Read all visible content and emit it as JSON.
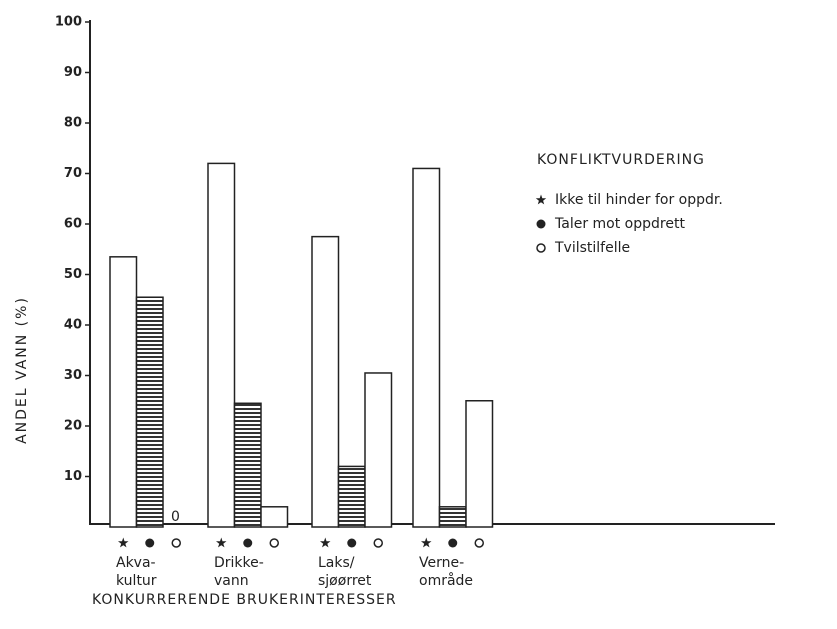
{
  "chart_data": {
    "type": "bar",
    "categories": [
      [
        "Akva-",
        "kultur"
      ],
      [
        "Drikke-",
        "vann"
      ],
      [
        "Laks/",
        "sjøørret"
      ],
      [
        "Verne-",
        "område"
      ]
    ],
    "series": [
      {
        "name": "Ikke til hinder for oppdr.",
        "color": "#ffffff",
        "marker": "star",
        "values": [
          53.5,
          72,
          57.5,
          71
        ]
      },
      {
        "name": "Taler mot oppdrett",
        "color": "#333333",
        "hatch": true,
        "marker": "dot",
        "values": [
          45.5,
          24.5,
          12,
          4
        ]
      },
      {
        "name": "Tvilstilfelle",
        "color": "#ffffff",
        "marker": "ring",
        "values": [
          0,
          4,
          30.5,
          25
        ]
      }
    ],
    "ylim": [
      0,
      100
    ],
    "yticks": [
      10,
      20,
      30,
      40,
      50,
      60,
      70,
      80,
      90,
      100
    ],
    "ylabel": "ANDEL VANN (%)",
    "xlabel": "KONKURRERENDE BRUKERINTERESSER",
    "legend_title": "KONFLIKTVURDERING",
    "legend": "right"
  }
}
